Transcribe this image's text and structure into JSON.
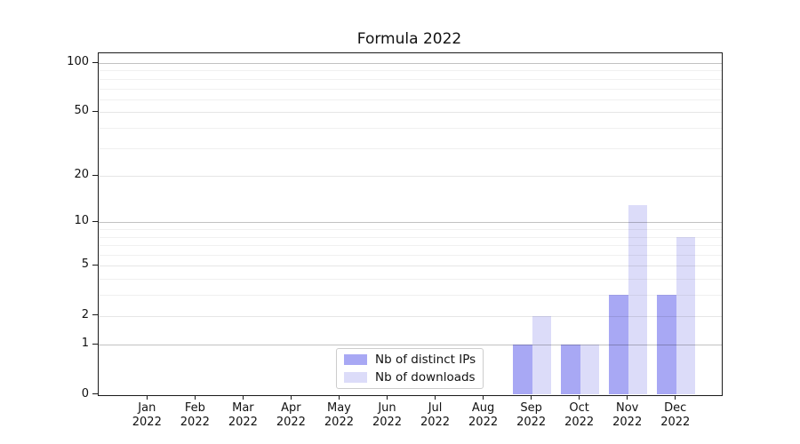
{
  "title": "Formula 2022",
  "legend": {
    "items": [
      {
        "label": "Nb of distinct IPs",
        "color": "#a8a8f4"
      },
      {
        "label": "Nb of downloads",
        "color": "#dcdcf9"
      }
    ],
    "position": "lower center"
  },
  "colors": {
    "distinct_ips": "#a8a8f4",
    "downloads": "#dcdcf9",
    "grid_major": "#c2c2c2",
    "grid_mid": "#e6e6e6",
    "grid_minor": "#f0f0f0",
    "axis": "#1a1a1a",
    "background": "#ffffff"
  },
  "chart_data": {
    "type": "bar",
    "title": "Formula 2022",
    "categories": [
      "Jan 2022",
      "Feb 2022",
      "Mar 2022",
      "Apr 2022",
      "May 2022",
      "Jun 2022",
      "Jul 2022",
      "Aug 2022",
      "Sep 2022",
      "Oct 2022",
      "Nov 2022",
      "Dec 2022"
    ],
    "series": [
      {
        "name": "Nb of distinct IPs",
        "color": "#a8a8f4",
        "values": [
          0,
          0,
          0,
          0,
          0,
          0,
          0,
          0,
          1,
          1,
          3,
          3
        ]
      },
      {
        "name": "Nb of downloads",
        "color": "#dcdcf9",
        "values": [
          0,
          0,
          0,
          0,
          0,
          0,
          0,
          0,
          2,
          1,
          13,
          8
        ]
      }
    ],
    "xlabel": "",
    "ylabel": "",
    "yscale": "log1p",
    "yticks": [
      0,
      1,
      2,
      5,
      10,
      20,
      50,
      100
    ],
    "major_gridlines": [
      1,
      10,
      100
    ],
    "mid_gridlines": [
      2,
      5,
      20,
      50
    ],
    "minor_gridlines": [
      3,
      4,
      6,
      7,
      8,
      9,
      30,
      40,
      60,
      70,
      80,
      90
    ],
    "ylim": [
      0,
      114
    ],
    "grid": "on",
    "legend_position": "lower center"
  }
}
